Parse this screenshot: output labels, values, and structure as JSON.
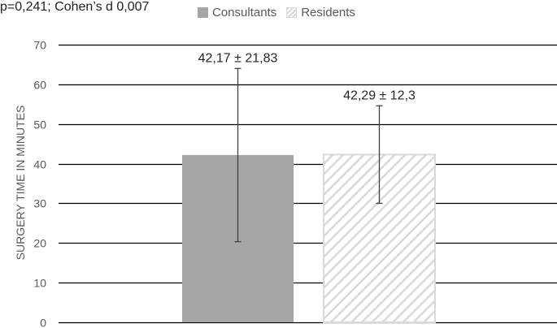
{
  "stat_text": "p=0,241; Cohen’s d 0,007",
  "colors": {
    "consultants": "#a6a6a6",
    "residents_stripe": "#d9d9d9",
    "grid": "#000000",
    "error_bar": "#404040"
  },
  "chart_data": {
    "type": "bar",
    "title": "",
    "xlabel": "",
    "ylabel": "SURGERY TIME IN MINUTES",
    "ylim": [
      0,
      70
    ],
    "yticks": [
      0,
      10,
      20,
      30,
      40,
      50,
      60,
      70
    ],
    "grid": true,
    "legend_position": "top",
    "categories": [
      ""
    ],
    "series": [
      {
        "name": "Consultants",
        "values": [
          42.17
        ],
        "error": [
          21.83
        ],
        "label": "42,17 ± 21,83",
        "fill": "solid"
      },
      {
        "name": "Residents",
        "values": [
          42.29
        ],
        "error": [
          12.3
        ],
        "label": "42,29 ± 12,3",
        "fill": "hatched"
      }
    ]
  }
}
